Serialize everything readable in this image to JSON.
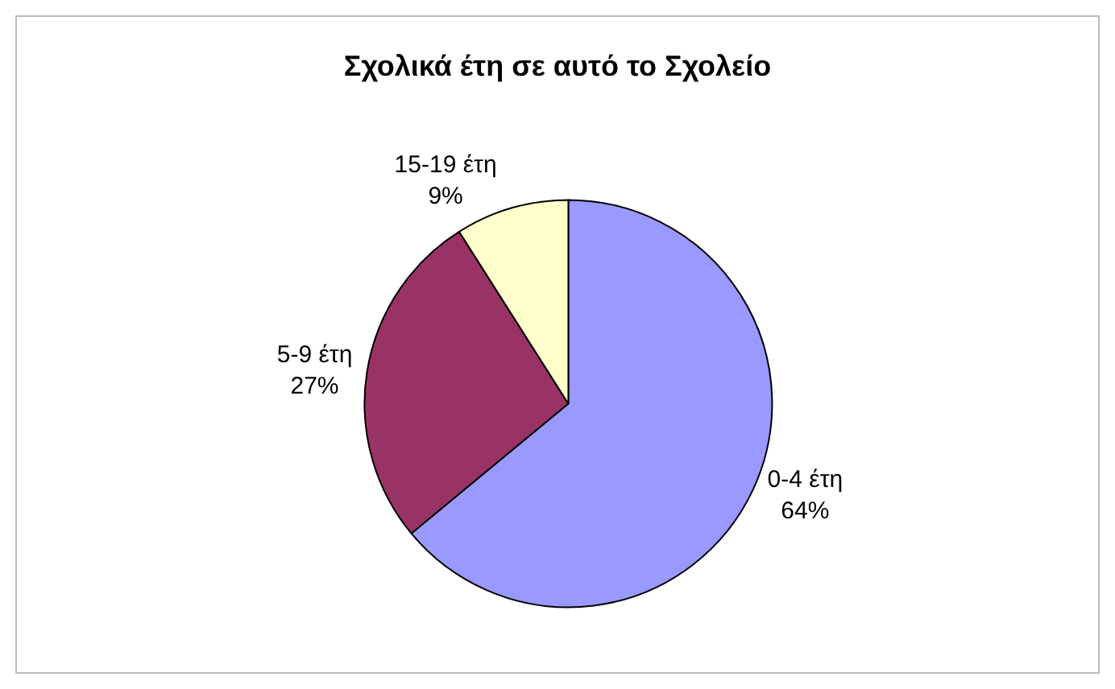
{
  "chart_data": {
    "type": "pie",
    "title": "Σχολικά έτη σε αυτό το Σχολείο",
    "categories": [
      "0-4 έτη",
      "5-9 έτη",
      "15-19 έτη"
    ],
    "values": [
      64,
      27,
      9
    ],
    "value_labels": [
      "64%",
      "27%",
      "9%"
    ],
    "colors": [
      "#9999ff",
      "#993366",
      "#ffffcc"
    ],
    "legend": false
  }
}
